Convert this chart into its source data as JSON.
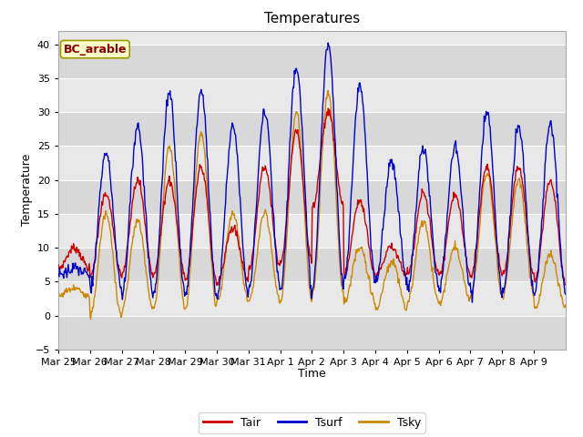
{
  "title": "Temperatures",
  "xlabel": "Time",
  "ylabel": "Temperature",
  "annotation": "BC_arable",
  "ylim": [
    -5,
    42
  ],
  "yticks": [
    -5,
    0,
    5,
    10,
    15,
    20,
    25,
    30,
    35,
    40
  ],
  "fig_facecolor": "#ffffff",
  "plot_facecolor": "#e8e8e8",
  "line_colors": {
    "Tair": "#cc0000",
    "Tsurf": "#0000cc",
    "Tsky": "#cc8800"
  },
  "legend_labels": [
    "Tair",
    "Tsurf",
    "Tsky"
  ],
  "x_tick_labels": [
    "Mar 25",
    "Mar 26",
    "Mar 27",
    "Mar 28",
    "Mar 29",
    "Mar 30",
    "Mar 31",
    "Apr 1",
    "Apr 2",
    "Apr 3",
    "Apr 4",
    "Apr 5",
    "Apr 6",
    "Apr 7",
    "Apr 8",
    "Apr 9"
  ],
  "num_days": 16,
  "points_per_day": 48
}
